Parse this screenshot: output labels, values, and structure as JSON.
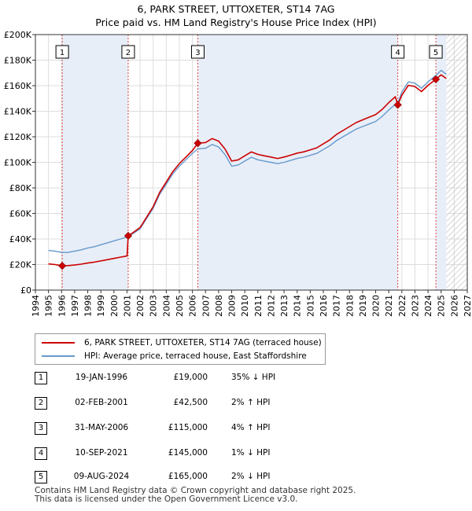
{
  "title": {
    "line1": "6, PARK STREET, UTTOXETER, ST14 7AG",
    "line2": "Price paid vs. HM Land Registry's House Price Index (HPI)"
  },
  "legend": {
    "property": "6, PARK STREET, UTTOXETER, ST14 7AG (terraced house)",
    "hpi": "HPI: Average price, terraced house, East Staffordshire"
  },
  "colors": {
    "property": "#cc0000",
    "hpi": "#6699cc",
    "shade": "#e8eef8",
    "hatch": "#c8c8c8"
  },
  "sales": [
    {
      "num": "1",
      "date": "19-JAN-1996",
      "price": "£19,000",
      "hpi": "35% ↓ HPI"
    },
    {
      "num": "2",
      "date": "02-FEB-2001",
      "price": "£42,500",
      "hpi": "2% ↑ HPI"
    },
    {
      "num": "3",
      "date": "31-MAY-2006",
      "price": "£115,000",
      "hpi": "4% ↑ HPI"
    },
    {
      "num": "4",
      "date": "10-SEP-2021",
      "price": "£145,000",
      "hpi": "1% ↓ HPI"
    },
    {
      "num": "5",
      "date": "09-AUG-2024",
      "price": "£165,000",
      "hpi": "2% ↓ HPI"
    }
  ],
  "footer": {
    "line1": "Contains HM Land Registry data © Crown copyright and database right 2025.",
    "line2": "This data is licensed under the Open Government Licence v3.0."
  },
  "chart_data": {
    "type": "line",
    "title": "Price paid vs. HM Land Registry's House Price Index (HPI)",
    "xlim": [
      1994,
      2027
    ],
    "ylim": [
      0,
      200000
    ],
    "x_ticks": [
      "1994",
      "1995",
      "1996",
      "1997",
      "1998",
      "1999",
      "2000",
      "2001",
      "2002",
      "2003",
      "2004",
      "2005",
      "2006",
      "2007",
      "2008",
      "2009",
      "2010",
      "2011",
      "2012",
      "2013",
      "2014",
      "2015",
      "2016",
      "2017",
      "2018",
      "2019",
      "2020",
      "2021",
      "2022",
      "2023",
      "2024",
      "2025",
      "2026",
      "2027"
    ],
    "y_ticks": [
      {
        "value": 0,
        "label": "£0"
      },
      {
        "value": 20000,
        "label": "£20K"
      },
      {
        "value": 40000,
        "label": "£40K"
      },
      {
        "value": 60000,
        "label": "£60K"
      },
      {
        "value": 80000,
        "label": "£80K"
      },
      {
        "value": 100000,
        "label": "£100K"
      },
      {
        "value": 120000,
        "label": "£120K"
      },
      {
        "value": 140000,
        "label": "£140K"
      },
      {
        "value": 160000,
        "label": "£160K"
      },
      {
        "value": 180000,
        "label": "£180K"
      },
      {
        "value": 200000,
        "label": "£200K"
      }
    ],
    "data_start": 1995.0,
    "data_end": 2025.4,
    "shaded_ranges": [
      [
        1996.05,
        2001.09
      ],
      [
        2006.41,
        2021.69
      ],
      [
        2024.6,
        2025.4
      ]
    ],
    "hatch_range": [
      2025.4,
      2027
    ],
    "sale_markers": [
      {
        "label": "1",
        "x": 1996.05,
        "y": 19000
      },
      {
        "label": "2",
        "x": 2001.09,
        "y": 42500
      },
      {
        "label": "3",
        "x": 2006.41,
        "y": 115000
      },
      {
        "label": "4",
        "x": 2021.69,
        "y": 145000
      },
      {
        "label": "5",
        "x": 2024.6,
        "y": 165000
      }
    ],
    "series": [
      {
        "name": "HPI: Average price, terraced house, East Staffordshire",
        "color": "#6699cc",
        "points": [
          [
            1995.0,
            31000
          ],
          [
            1995.5,
            30500
          ],
          [
            1996.0,
            29500
          ],
          [
            1996.5,
            29500
          ],
          [
            1997.0,
            30500
          ],
          [
            1997.5,
            31500
          ],
          [
            1998.0,
            33000
          ],
          [
            1998.5,
            34000
          ],
          [
            1999.0,
            35500
          ],
          [
            1999.5,
            37000
          ],
          [
            2000.0,
            38500
          ],
          [
            2000.5,
            40000
          ],
          [
            2001.0,
            41500
          ],
          [
            2001.5,
            44500
          ],
          [
            2002.0,
            48000
          ],
          [
            2002.5,
            56000
          ],
          [
            2003.0,
            64000
          ],
          [
            2003.5,
            75000
          ],
          [
            2004.0,
            83000
          ],
          [
            2004.5,
            91000
          ],
          [
            2005.0,
            97000
          ],
          [
            2005.5,
            102000
          ],
          [
            2006.0,
            107000
          ],
          [
            2006.4,
            110500
          ],
          [
            2007.0,
            111000
          ],
          [
            2007.5,
            114000
          ],
          [
            2008.0,
            112000
          ],
          [
            2008.5,
            106000
          ],
          [
            2009.0,
            97000
          ],
          [
            2009.5,
            98000
          ],
          [
            2010.0,
            101000
          ],
          [
            2010.5,
            104000
          ],
          [
            2011.0,
            102000
          ],
          [
            2011.5,
            101000
          ],
          [
            2012.0,
            100000
          ],
          [
            2012.5,
            99000
          ],
          [
            2013.0,
            100000
          ],
          [
            2013.5,
            101500
          ],
          [
            2014.0,
            103000
          ],
          [
            2014.5,
            104000
          ],
          [
            2015.0,
            105500
          ],
          [
            2015.5,
            107000
          ],
          [
            2016.0,
            110000
          ],
          [
            2016.5,
            113000
          ],
          [
            2017.0,
            117000
          ],
          [
            2017.5,
            120000
          ],
          [
            2018.0,
            123000
          ],
          [
            2018.5,
            126000
          ],
          [
            2019.0,
            128000
          ],
          [
            2019.5,
            130000
          ],
          [
            2020.0,
            132000
          ],
          [
            2020.5,
            136000
          ],
          [
            2021.0,
            141000
          ],
          [
            2021.5,
            145500
          ],
          [
            2021.7,
            146500
          ],
          [
            2022.0,
            155000
          ],
          [
            2022.5,
            163000
          ],
          [
            2023.0,
            162000
          ],
          [
            2023.5,
            158000
          ],
          [
            2024.0,
            163000
          ],
          [
            2024.6,
            168000
          ],
          [
            2025.0,
            172000
          ],
          [
            2025.4,
            169000
          ]
        ]
      },
      {
        "name": "6, PARK STREET, UTTOXETER, ST14 7AG (terraced house)",
        "color": "#cc0000",
        "points": [
          [
            1995.0,
            20500
          ],
          [
            1995.5,
            20000
          ],
          [
            1996.05,
            19000
          ],
          [
            1996.5,
            19200
          ],
          [
            1997.0,
            19600
          ],
          [
            1997.5,
            20300
          ],
          [
            1998.0,
            21200
          ],
          [
            1998.5,
            21900
          ],
          [
            1999.0,
            22800
          ],
          [
            1999.5,
            23800
          ],
          [
            2000.0,
            24800
          ],
          [
            2000.5,
            25800
          ],
          [
            2001.0,
            26700
          ],
          [
            2001.09,
            42500
          ],
          [
            2001.5,
            45300
          ],
          [
            2002.0,
            49000
          ],
          [
            2002.5,
            57100
          ],
          [
            2003.0,
            65300
          ],
          [
            2003.5,
            76500
          ],
          [
            2004.0,
            84700
          ],
          [
            2004.5,
            92800
          ],
          [
            2005.0,
            99000
          ],
          [
            2005.5,
            104100
          ],
          [
            2006.0,
            109200
          ],
          [
            2006.41,
            115000
          ],
          [
            2007.0,
            115500
          ],
          [
            2007.5,
            118600
          ],
          [
            2008.0,
            116600
          ],
          [
            2008.5,
            110300
          ],
          [
            2009.0,
            101000
          ],
          [
            2009.5,
            102000
          ],
          [
            2010.0,
            105100
          ],
          [
            2010.5,
            108200
          ],
          [
            2011.0,
            106200
          ],
          [
            2011.5,
            105100
          ],
          [
            2012.0,
            104100
          ],
          [
            2012.5,
            103000
          ],
          [
            2013.0,
            104100
          ],
          [
            2013.5,
            105600
          ],
          [
            2014.0,
            107200
          ],
          [
            2014.5,
            108200
          ],
          [
            2015.0,
            109800
          ],
          [
            2015.5,
            111400
          ],
          [
            2016.0,
            114500
          ],
          [
            2016.5,
            117600
          ],
          [
            2017.0,
            121800
          ],
          [
            2017.5,
            124900
          ],
          [
            2018.0,
            128000
          ],
          [
            2018.5,
            131100
          ],
          [
            2019.0,
            133200
          ],
          [
            2019.5,
            135300
          ],
          [
            2020.0,
            137400
          ],
          [
            2020.5,
            141500
          ],
          [
            2021.0,
            146800
          ],
          [
            2021.5,
            151400
          ],
          [
            2021.69,
            145000
          ],
          [
            2022.0,
            152500
          ],
          [
            2022.5,
            160300
          ],
          [
            2023.0,
            159300
          ],
          [
            2023.5,
            155400
          ],
          [
            2024.0,
            160300
          ],
          [
            2024.6,
            165000
          ],
          [
            2025.0,
            168500
          ],
          [
            2025.4,
            165600
          ]
        ]
      }
    ]
  }
}
